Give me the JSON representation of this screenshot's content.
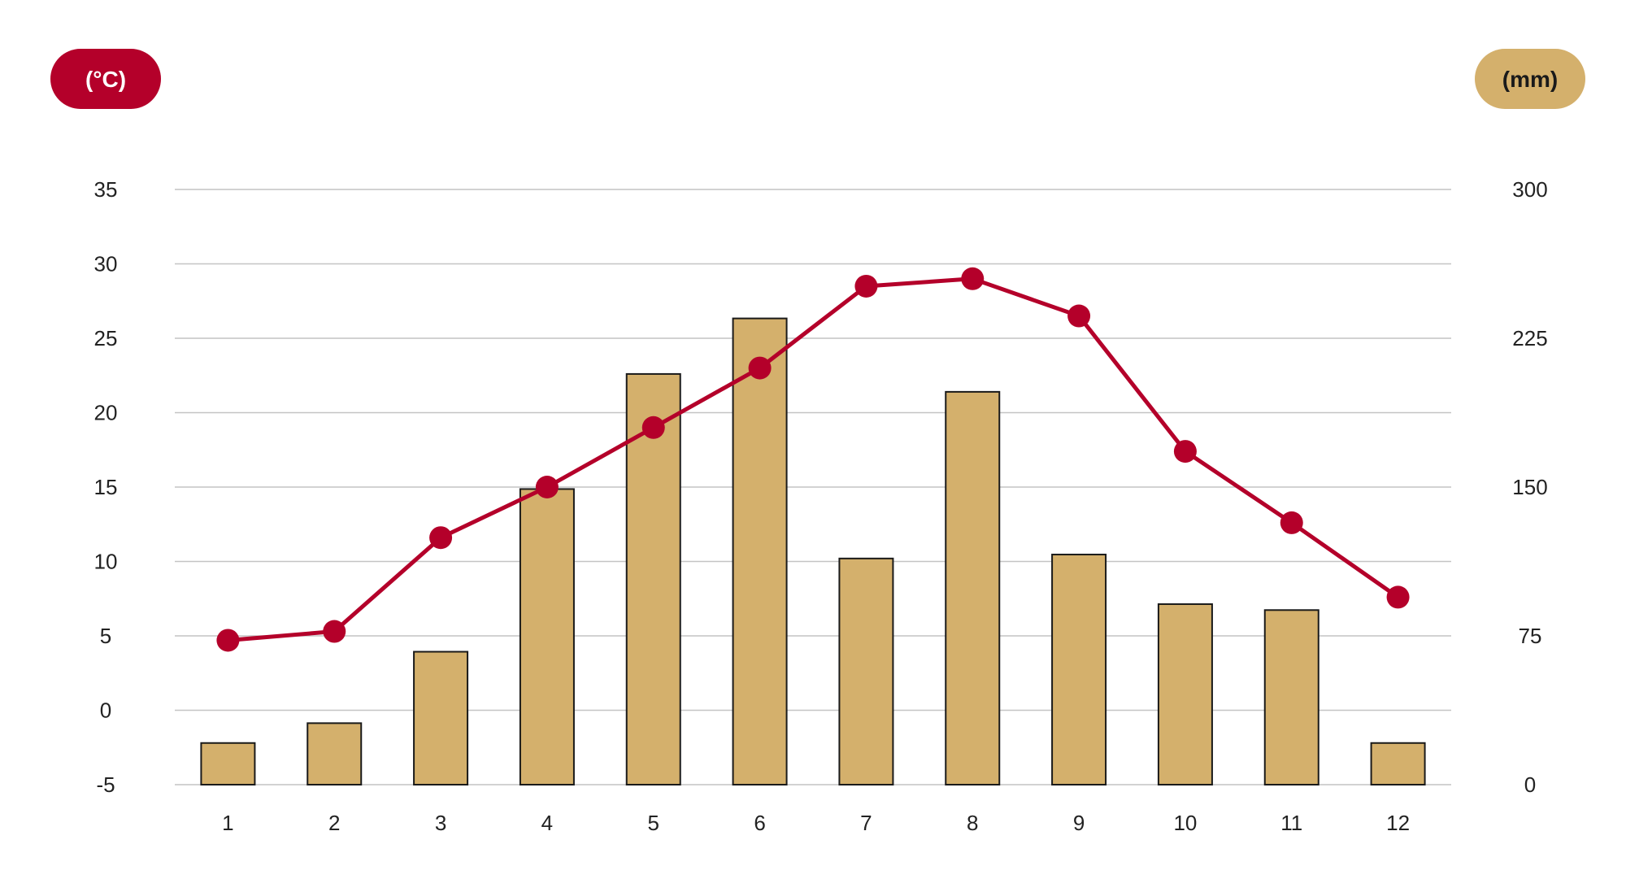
{
  "chart_data": {
    "type": "bar",
    "categories": [
      "1",
      "2",
      "3",
      "4",
      "5",
      "6",
      "7",
      "8",
      "9",
      "10",
      "11",
      "12"
    ],
    "series": [
      {
        "type": "bar",
        "axis": "right",
        "unit": "(mm)",
        "color": "#d4b06c",
        "values": [
          21,
          31,
          67,
          149,
          207,
          235,
          114,
          198,
          116,
          91,
          88,
          21
        ]
      },
      {
        "type": "line",
        "axis": "left",
        "unit": "(°C)",
        "color": "#b4002a",
        "values": [
          4.7,
          5.3,
          11.6,
          15.0,
          19.0,
          23.0,
          28.5,
          29.0,
          26.5,
          17.4,
          12.6,
          7.6
        ]
      }
    ],
    "y_left": {
      "label": "(°C)",
      "range": [
        -5,
        35
      ],
      "ticks": [
        35,
        30,
        25,
        20,
        15,
        10,
        5,
        0,
        -5
      ]
    },
    "y_right": {
      "label": "(mm)",
      "range": [
        0,
        300
      ],
      "ticks": [
        300,
        225,
        150,
        75,
        0
      ]
    },
    "grid": true,
    "legend": "none"
  }
}
